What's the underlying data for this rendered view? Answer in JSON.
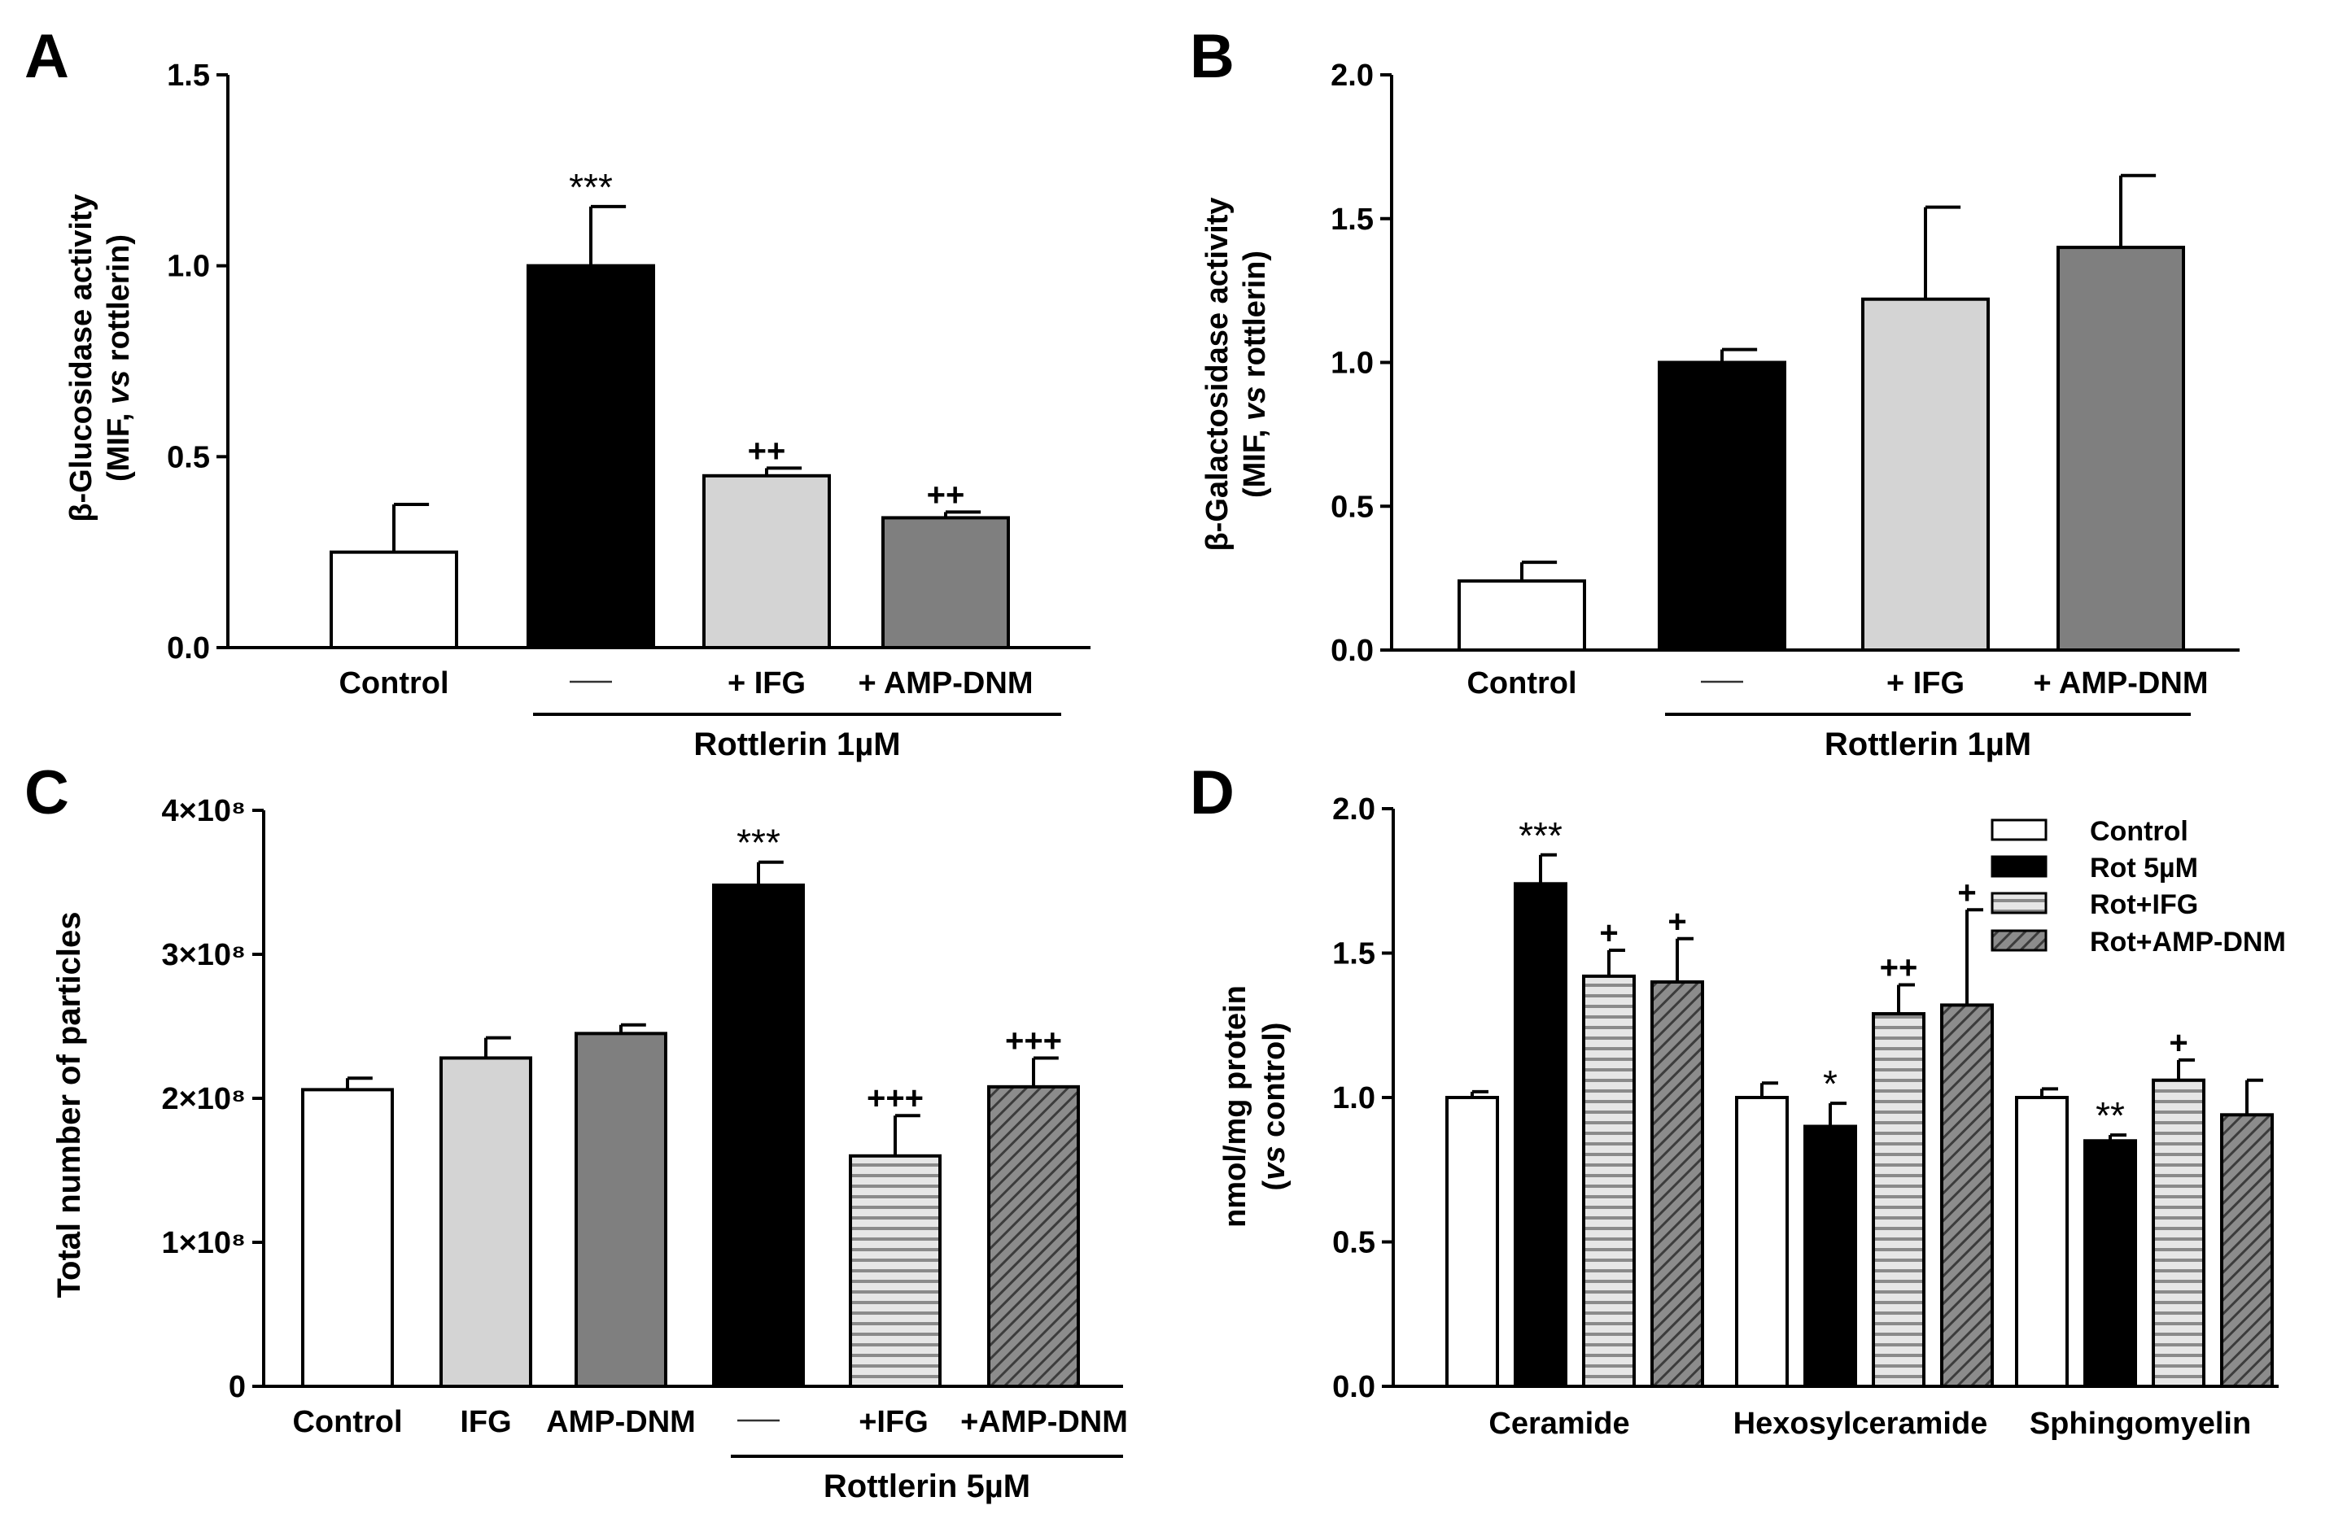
{
  "chart_data": [
    {
      "panel": "A",
      "type": "bar",
      "ylabel_line1": "β-Glucosidase activity",
      "ylabel_line2": "(MIF, vs rottlerin)",
      "ylim": [
        0,
        1.5
      ],
      "yticks": [
        0.0,
        0.5,
        1.0,
        1.5
      ],
      "ytick_labels": [
        "0.0",
        "0.5",
        "1.0",
        "1.5"
      ],
      "categories": [
        "Control",
        "—",
        "+ IFG",
        "+ AMP-DNM"
      ],
      "values": [
        0.25,
        1.0,
        0.45,
        0.34
      ],
      "errors": [
        0.125,
        0.155,
        0.02,
        0.015
      ],
      "fills": [
        "#ffffff",
        "#000000",
        "#d4d4d4",
        "#7f7f7f"
      ],
      "patterns": [
        "solid",
        "solid",
        "solid",
        "solid"
      ],
      "significance": [
        "",
        "***",
        "++",
        "++"
      ],
      "group_label": "Rottlerin 1µM",
      "group_span": [
        1,
        3
      ]
    },
    {
      "panel": "B",
      "type": "bar",
      "ylabel_line1": "β-Galactosidase activity",
      "ylabel_line2": "(MIF, vs rottlerin)",
      "ylim": [
        0,
        2.0
      ],
      "yticks": [
        0.0,
        0.5,
        1.0,
        1.5,
        2.0
      ],
      "ytick_labels": [
        "0.0",
        "0.5",
        "1.0",
        "1.5",
        "2.0"
      ],
      "categories": [
        "Control",
        "—",
        "+ IFG",
        "+ AMP-DNM"
      ],
      "values": [
        0.24,
        1.0,
        1.22,
        1.4
      ],
      "errors": [
        0.065,
        0.045,
        0.32,
        0.25
      ],
      "fills": [
        "#ffffff",
        "#000000",
        "#d4d4d4",
        "#7f7f7f"
      ],
      "patterns": [
        "solid",
        "solid",
        "solid",
        "solid"
      ],
      "significance": [
        "",
        "",
        "",
        ""
      ],
      "group_label": "Rottlerin 1µM",
      "group_span": [
        1,
        3
      ]
    },
    {
      "panel": "C",
      "type": "bar",
      "ylabel": "Total number of particles",
      "ylim": [
        0,
        4
      ],
      "yticks": [
        0,
        1,
        2,
        3,
        4
      ],
      "ytick_labels": [
        "0",
        "1×10⁸",
        "2×10⁸",
        "3×10⁸",
        "4×10⁸"
      ],
      "categories": [
        "Control",
        "IFG",
        "AMP-DNM",
        "—",
        "+IFG",
        "+AMP-DNM"
      ],
      "values": [
        2.06,
        2.28,
        2.45,
        3.48,
        1.6,
        2.08
      ],
      "errors": [
        0.08,
        0.14,
        0.06,
        0.16,
        0.28,
        0.2
      ],
      "fills": [
        "#ffffff",
        "#d4d4d4",
        "#7f7f7f",
        "#000000",
        "#ffffff",
        "#ffffff"
      ],
      "patterns": [
        "solid",
        "solid",
        "solid",
        "solid",
        "hstripe",
        "diag"
      ],
      "significance": [
        "",
        "",
        "",
        "***",
        "+++",
        "+++"
      ],
      "group_label": "Rottlerin 5µM",
      "group_span": [
        3,
        5
      ]
    },
    {
      "panel": "D",
      "type": "grouped-bar",
      "ylabel_line1": "nmol/mg protein",
      "ylabel_line2": "(vs control)",
      "ylim": [
        0,
        2.0
      ],
      "yticks": [
        0.0,
        0.5,
        1.0,
        1.5,
        2.0
      ],
      "ytick_labels": [
        "0.0",
        "0.5",
        "1.0",
        "1.5",
        "2.0"
      ],
      "categories": [
        "Ceramide",
        "Hexosylceramide",
        "Sphingomyelin"
      ],
      "series": [
        {
          "name": "Control",
          "values": [
            1.0,
            1.0,
            1.0
          ],
          "errors": [
            0.02,
            0.05,
            0.03
          ],
          "fill": "#ffffff",
          "pattern": "solid",
          "significance": [
            "",
            "",
            ""
          ]
        },
        {
          "name": "Rot 5µM",
          "values": [
            1.74,
            0.9,
            0.85
          ],
          "errors": [
            0.1,
            0.08,
            0.02
          ],
          "fill": "#000000",
          "pattern": "solid",
          "significance": [
            "***",
            "*",
            "**"
          ]
        },
        {
          "name": "Rot+IFG",
          "values": [
            1.42,
            1.29,
            1.06
          ],
          "errors": [
            0.09,
            0.1,
            0.07
          ],
          "fill": "#ffffff",
          "pattern": "hstripe",
          "significance": [
            "+",
            "++",
            "+"
          ]
        },
        {
          "name": "Rot+AMP-DNM",
          "values": [
            1.4,
            1.32,
            0.94
          ],
          "errors": [
            0.15,
            0.33,
            0.12
          ],
          "fill": "#ffffff",
          "pattern": "diag",
          "significance": [
            "+",
            "+",
            ""
          ]
        }
      ],
      "legend_position": "top-right"
    }
  ]
}
